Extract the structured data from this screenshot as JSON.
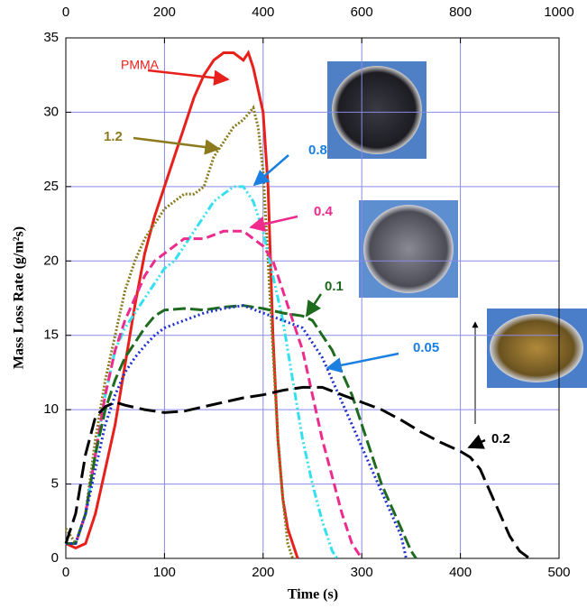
{
  "chart_data": {
    "type": "line",
    "xlabel": "Time (s)",
    "ylabel": "Mass Loss Rate (g/m²s)",
    "xlim": [
      0,
      500
    ],
    "xticks": [
      0,
      100,
      200,
      300,
      400,
      500
    ],
    "ylim": [
      0,
      35
    ],
    "yticks": [
      0,
      5,
      10,
      15,
      20,
      25,
      30,
      35
    ],
    "x2lim": [
      0,
      1000
    ],
    "x2ticks": [
      0,
      200,
      400,
      600,
      800,
      1000
    ],
    "grid": true,
    "series": [
      {
        "name": "PMMA",
        "color": "#e8201c",
        "dash": "none",
        "x": [
          0,
          10,
          20,
          30,
          40,
          50,
          60,
          70,
          80,
          90,
          100,
          110,
          120,
          130,
          140,
          150,
          160,
          170,
          180,
          185,
          190,
          200,
          205,
          210,
          215,
          220,
          225,
          230,
          235
        ],
        "values": [
          1,
          0.7,
          1,
          3,
          6,
          9,
          13,
          17,
          20.5,
          23,
          25,
          27,
          29,
          31,
          32.5,
          33.5,
          34,
          34,
          33.5,
          34,
          33,
          30,
          25,
          15,
          8,
          4,
          2,
          1,
          0
        ]
      },
      {
        "name": "1.2",
        "color": "#8b7a1e",
        "dash": "2 2",
        "x": [
          0,
          10,
          20,
          30,
          40,
          50,
          60,
          70,
          80,
          90,
          100,
          110,
          120,
          130,
          140,
          150,
          160,
          170,
          180,
          190,
          195,
          200,
          205,
          210,
          215,
          220,
          225,
          230
        ],
        "values": [
          2,
          1,
          3,
          8,
          12,
          15,
          18,
          20,
          21.5,
          22.5,
          23.5,
          24,
          24.5,
          24.5,
          25,
          27,
          28,
          29,
          29.5,
          30.3,
          29,
          26,
          20,
          14,
          8,
          4,
          1,
          0
        ]
      },
      {
        "name": "0.8",
        "color": "#33e0f0",
        "dash": "9 3 2 3 2 3",
        "x": [
          0,
          10,
          20,
          30,
          40,
          50,
          60,
          70,
          80,
          90,
          100,
          110,
          120,
          130,
          140,
          150,
          160,
          170,
          180,
          190,
          200,
          210,
          220,
          230,
          240,
          250,
          260,
          270,
          275
        ],
        "values": [
          1,
          1,
          3,
          7,
          11,
          14,
          15.5,
          16.5,
          17.5,
          18.5,
          19.5,
          20,
          21,
          22,
          23,
          24,
          24.5,
          25,
          25,
          24,
          22,
          19,
          16,
          12,
          8,
          5,
          2.5,
          0.5,
          0
        ]
      },
      {
        "name": "0.4",
        "color": "#ee2a8c",
        "dash": "10 5",
        "x": [
          0,
          10,
          20,
          30,
          40,
          50,
          60,
          70,
          80,
          90,
          100,
          110,
          120,
          140,
          160,
          180,
          190,
          200,
          210,
          220,
          230,
          240,
          250,
          260,
          270,
          280,
          290,
          300
        ],
        "values": [
          1,
          1,
          3,
          7,
          11,
          14,
          16,
          17.5,
          19,
          20,
          20.5,
          21,
          21.5,
          21.5,
          22,
          22,
          21.5,
          21,
          20,
          18,
          16,
          14,
          11,
          8,
          5.5,
          3,
          1,
          0
        ]
      },
      {
        "name": "0.1",
        "color": "#1e6a1e",
        "dash": "14 5",
        "x": [
          0,
          10,
          20,
          30,
          40,
          50,
          60,
          70,
          80,
          90,
          100,
          120,
          140,
          160,
          180,
          200,
          220,
          240,
          250,
          260,
          270,
          280,
          290,
          300,
          310,
          320,
          330,
          340,
          350,
          355
        ],
        "values": [
          1,
          1,
          3,
          7,
          10,
          12,
          13.5,
          14.5,
          15.5,
          16.3,
          16.7,
          16.8,
          16.7,
          16.9,
          17,
          16.8,
          16.5,
          16.3,
          16,
          15,
          14,
          12.5,
          11,
          9,
          7,
          5,
          3.5,
          2,
          0.5,
          0
        ]
      },
      {
        "name": "0.05",
        "color": "#2030d0",
        "dash": "2 3",
        "x": [
          0,
          10,
          20,
          30,
          40,
          50,
          60,
          70,
          80,
          90,
          100,
          120,
          140,
          160,
          180,
          200,
          220,
          240,
          250,
          260,
          270,
          280,
          290,
          300,
          310,
          320,
          330,
          340,
          345
        ],
        "values": [
          1,
          1,
          3,
          6,
          9,
          11,
          12.5,
          13.5,
          14.3,
          15,
          15.5,
          16,
          16.5,
          16.8,
          17,
          16.5,
          16,
          15.5,
          14.5,
          13.5,
          12,
          10.5,
          9,
          7.5,
          6,
          4.5,
          3,
          1.5,
          0
        ]
      },
      {
        "name": "0.2",
        "color": "#000000",
        "dash": "18 7",
        "x": [
          0,
          10,
          20,
          30,
          40,
          50,
          60,
          80,
          100,
          120,
          140,
          160,
          180,
          200,
          220,
          240,
          260,
          280,
          300,
          320,
          340,
          360,
          380,
          400,
          410,
          420,
          430,
          440,
          450,
          460,
          470
        ],
        "values": [
          1,
          3,
          7,
          9.5,
          10.2,
          10.5,
          10.3,
          10,
          9.8,
          9.9,
          10.2,
          10.5,
          10.8,
          11,
          11.3,
          11.5,
          11.5,
          11,
          10.5,
          10,
          9.3,
          8.5,
          7.8,
          7.2,
          6.8,
          6,
          4.5,
          3,
          1.5,
          0.5,
          0
        ]
      }
    ]
  }
}
